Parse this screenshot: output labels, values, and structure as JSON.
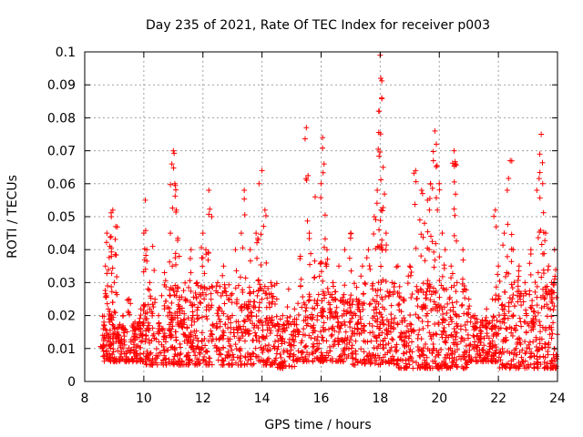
{
  "chart_data": {
    "type": "scatter",
    "title": "Day 235 of 2021, Rate Of TEC Index for receiver p003",
    "xlabel": "GPS time / hours",
    "ylabel": "ROTI / TECUs",
    "xlim": [
      8,
      24
    ],
    "ylim": [
      0,
      0.1
    ],
    "xticks": [
      "8",
      "10",
      "12",
      "14",
      "16",
      "18",
      "20",
      "22",
      "24"
    ],
    "yticks": [
      "0",
      "0.01",
      "0.02",
      "0.03",
      "0.04",
      "0.05",
      "0.06",
      "0.07",
      "0.08",
      "0.09",
      "0.1"
    ],
    "grid": true,
    "marker": "+",
    "color": "#ff0000",
    "series": [
      {
        "points": [
          [
            8.6,
            0.01
          ],
          [
            8.65,
            0.018
          ],
          [
            8.7,
            0.035
          ],
          [
            8.75,
            0.045
          ],
          [
            8.8,
            0.022
          ],
          [
            8.85,
            0.041
          ],
          [
            8.9,
            0.05
          ],
          [
            8.95,
            0.052
          ],
          [
            9.0,
            0.03
          ],
          [
            9.05,
            0.047
          ],
          [
            9.1,
            0.015
          ],
          [
            9.2,
            0.012
          ],
          [
            9.3,
            0.02
          ],
          [
            9.5,
            0.025
          ],
          [
            9.7,
            0.018
          ],
          [
            9.9,
            0.022
          ],
          [
            10.0,
            0.045
          ],
          [
            10.05,
            0.055
          ],
          [
            10.1,
            0.04
          ],
          [
            10.2,
            0.03
          ],
          [
            10.3,
            0.041
          ],
          [
            10.5,
            0.02
          ],
          [
            10.7,
            0.033
          ],
          [
            10.9,
            0.045
          ],
          [
            10.95,
            0.066
          ],
          [
            11.0,
            0.07
          ],
          [
            11.05,
            0.06
          ],
          [
            11.1,
            0.052
          ],
          [
            11.2,
            0.038
          ],
          [
            11.4,
            0.025
          ],
          [
            11.6,
            0.04
          ],
          [
            11.8,
            0.03
          ],
          [
            12.0,
            0.045
          ],
          [
            12.1,
            0.04
          ],
          [
            12.2,
            0.058
          ],
          [
            12.3,
            0.05
          ],
          [
            12.5,
            0.03
          ],
          [
            12.7,
            0.035
          ],
          [
            12.9,
            0.025
          ],
          [
            13.1,
            0.04
          ],
          [
            13.3,
            0.045
          ],
          [
            13.4,
            0.058
          ],
          [
            13.6,
            0.04
          ],
          [
            13.8,
            0.045
          ],
          [
            13.9,
            0.06
          ],
          [
            14.0,
            0.064
          ],
          [
            14.1,
            0.052
          ],
          [
            14.3,
            0.03
          ],
          [
            14.5,
            0.025
          ],
          [
            14.7,
            0.02
          ],
          [
            14.9,
            0.028
          ],
          [
            15.1,
            0.022
          ],
          [
            15.3,
            0.038
          ],
          [
            15.5,
            0.077
          ],
          [
            15.6,
            0.045
          ],
          [
            15.8,
            0.056
          ],
          [
            16.0,
            0.06
          ],
          [
            16.05,
            0.074
          ],
          [
            16.1,
            0.066
          ],
          [
            16.2,
            0.04
          ],
          [
            16.4,
            0.03
          ],
          [
            16.6,
            0.035
          ],
          [
            16.8,
            0.04
          ],
          [
            17.0,
            0.045
          ],
          [
            17.2,
            0.025
          ],
          [
            17.4,
            0.035
          ],
          [
            17.6,
            0.04
          ],
          [
            17.8,
            0.05
          ],
          [
            17.9,
            0.058
          ],
          [
            17.95,
            0.082
          ],
          [
            18.0,
            0.099
          ],
          [
            18.02,
            0.092
          ],
          [
            18.05,
            0.086
          ],
          [
            18.1,
            0.065
          ],
          [
            18.2,
            0.045
          ],
          [
            18.4,
            0.03
          ],
          [
            18.6,
            0.035
          ],
          [
            18.8,
            0.025
          ],
          [
            19.0,
            0.035
          ],
          [
            19.2,
            0.064
          ],
          [
            19.4,
            0.058
          ],
          [
            19.5,
            0.048
          ],
          [
            19.6,
            0.055
          ],
          [
            19.7,
            0.06
          ],
          [
            19.8,
            0.067
          ],
          [
            19.85,
            0.076
          ],
          [
            19.9,
            0.072
          ],
          [
            20.0,
            0.06
          ],
          [
            20.1,
            0.045
          ],
          [
            20.2,
            0.04
          ],
          [
            20.4,
            0.035
          ],
          [
            20.5,
            0.07
          ],
          [
            20.55,
            0.066
          ],
          [
            20.6,
            0.03
          ],
          [
            20.8,
            0.04
          ],
          [
            21.0,
            0.025
          ],
          [
            21.2,
            0.02
          ],
          [
            21.4,
            0.018
          ],
          [
            21.6,
            0.022
          ],
          [
            21.8,
            0.025
          ],
          [
            21.9,
            0.052
          ],
          [
            22.0,
            0.035
          ],
          [
            22.2,
            0.045
          ],
          [
            22.3,
            0.058
          ],
          [
            22.4,
            0.067
          ],
          [
            22.5,
            0.04
          ],
          [
            22.7,
            0.035
          ],
          [
            22.9,
            0.03
          ],
          [
            23.1,
            0.04
          ],
          [
            23.3,
            0.058
          ],
          [
            23.4,
            0.069
          ],
          [
            23.45,
            0.075
          ],
          [
            23.5,
            0.06
          ],
          [
            23.6,
            0.045
          ],
          [
            23.7,
            0.035
          ],
          [
            23.8,
            0.03
          ],
          [
            23.9,
            0.04
          ]
        ]
      }
    ],
    "dense_band": {
      "description": "background cloud of points",
      "segments": [
        [
          8.6,
          9.0,
          0.006,
          0.022
        ],
        [
          9.0,
          10.0,
          0.006,
          0.018
        ],
        [
          10.0,
          11.5,
          0.005,
          0.03
        ],
        [
          11.5,
          14.5,
          0.005,
          0.03
        ],
        [
          14.5,
          15.2,
          0.004,
          0.02
        ],
        [
          15.2,
          17.0,
          0.006,
          0.028
        ],
        [
          17.0,
          18.6,
          0.005,
          0.03
        ],
        [
          18.6,
          21.0,
          0.004,
          0.03
        ],
        [
          21.0,
          22.0,
          0.006,
          0.02
        ],
        [
          22.0,
          24.0,
          0.004,
          0.028
        ]
      ]
    }
  }
}
